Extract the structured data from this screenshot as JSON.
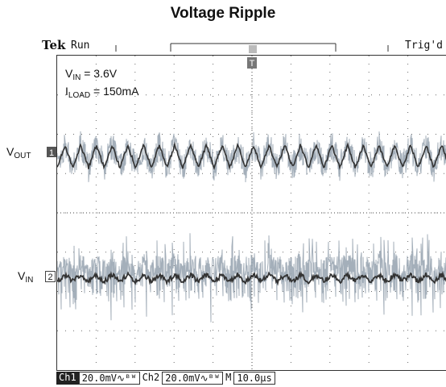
{
  "title": "Voltage Ripple",
  "scope": {
    "brand": "Tek",
    "run_state": "Run",
    "trigger_status": "Trig'd",
    "trigger_marker": "T",
    "conditions": {
      "vin_label": "V",
      "vin_sub": "IN",
      "vin_value": " = 3.6V",
      "iload_label": "I",
      "iload_sub": "LOAD",
      "iload_value": " = 150mA"
    },
    "channels": [
      {
        "label": "V",
        "sub": "OUT",
        "marker": "1"
      },
      {
        "label": "V",
        "sub": "IN",
        "marker": "2"
      }
    ],
    "status": {
      "ch1_label": "Ch1",
      "ch1_scale": "20.0mV",
      "ch1_coupling": "∿ᴮᵂ",
      "ch2_label": "Ch2",
      "ch2_scale": "20.0mV",
      "ch2_coupling": "∿ᴮᵂ",
      "timebase_prefix": "M",
      "timebase": "10.0μs"
    },
    "colors": {
      "trace_dark": "#333333",
      "trace_light": "#9aa6b2",
      "grid": "#6a6a6a"
    }
  }
}
